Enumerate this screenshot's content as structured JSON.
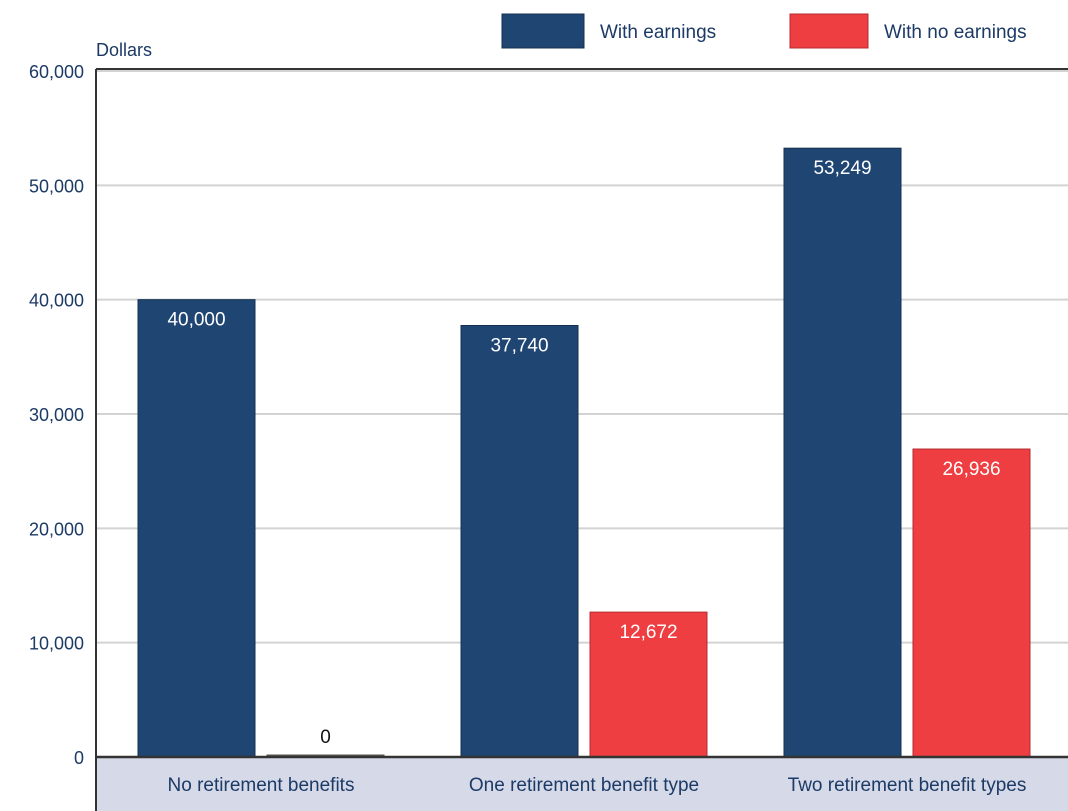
{
  "chart_data": {
    "type": "bar",
    "ylabel": "Dollars",
    "xlabel": "",
    "ylim": [
      0,
      60000
    ],
    "yticks": [
      0,
      10000,
      20000,
      30000,
      40000,
      50000,
      60000
    ],
    "ytick_labels": [
      "0",
      "10,000",
      "20,000",
      "30,000",
      "40,000",
      "50,000",
      "60,000"
    ],
    "categories": [
      "No retirement benefits",
      "One retirement benefit type",
      "Two retirement benefit types"
    ],
    "series": [
      {
        "name": "With earnings",
        "color": "#1f4572",
        "values": [
          40000,
          37740,
          53249
        ],
        "labels": [
          "40,000",
          "37,740",
          "53,249"
        ]
      },
      {
        "name": "With no earnings",
        "color": "#ef3e42",
        "values": [
          0,
          12672,
          26936
        ],
        "labels": [
          "0",
          "12,672",
          "26,936"
        ]
      }
    ],
    "grid": true,
    "legend_position": "top-right",
    "category_band_color": "#d5d9e8"
  }
}
